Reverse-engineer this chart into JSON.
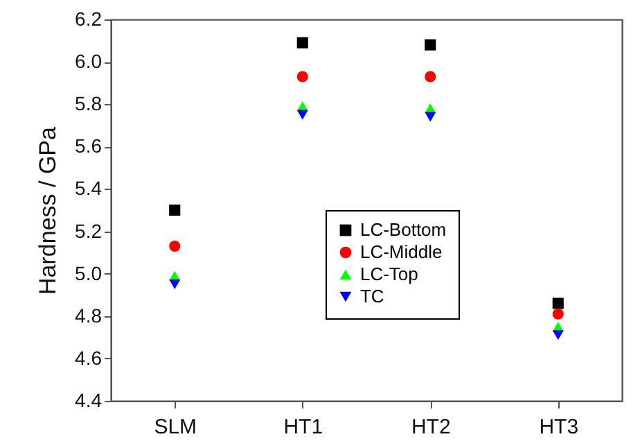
{
  "chart_data": {
    "type": "scatter",
    "ylabel": "Hardness / GPa",
    "categories": [
      "SLM",
      "HT1",
      "HT2",
      "HT3"
    ],
    "series": [
      {
        "name": "LC-Bottom",
        "color": "#000000",
        "marker": "square",
        "values": [
          5.3,
          6.09,
          6.08,
          4.86
        ]
      },
      {
        "name": "LC-Middle",
        "color": "#ff0000",
        "marker": "circle",
        "values": [
          5.13,
          5.93,
          5.93,
          4.81
        ]
      },
      {
        "name": "LC-Top",
        "color": "#00ff00",
        "marker": "triangle",
        "values": [
          4.99,
          5.79,
          5.78,
          4.75
        ]
      },
      {
        "name": "TC",
        "color": "#0000ff",
        "marker": "triangle-down",
        "values": [
          4.95,
          5.75,
          5.74,
          4.71
        ]
      }
    ],
    "ylim": [
      4.4,
      6.2
    ],
    "yticks": [
      4.4,
      4.6,
      4.8,
      {
        "value": 5,
        "label": "5.0"
      },
      5.2,
      5.4,
      5.6,
      5.8,
      {
        "value": 6,
        "label": "6.0"
      },
      6.2
    ],
    "grid": false,
    "legend": "center"
  }
}
